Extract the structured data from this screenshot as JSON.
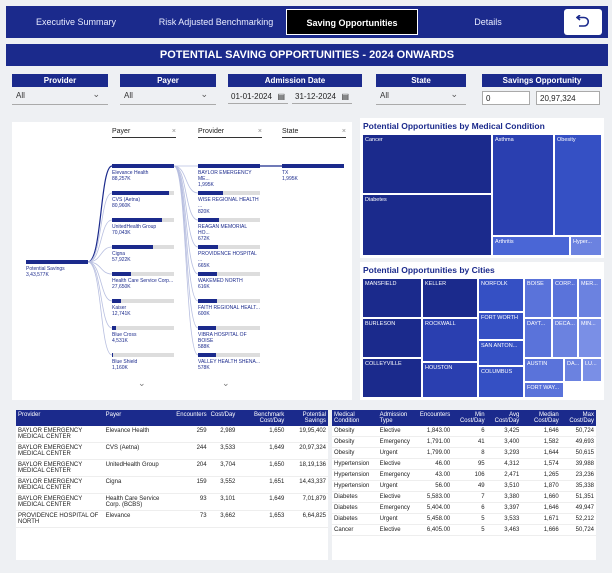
{
  "nav": {
    "tabs": [
      "Executive Summary",
      "Risk Adjusted Benchmarking",
      "Saving Opportunities",
      "Details"
    ],
    "back_icon": "back-arrow-icon"
  },
  "banner": "POTENTIAL SAVING OPPORTUNITIES - 2024 ONWARDS",
  "filters": {
    "provider": {
      "label": "Provider",
      "value": "All"
    },
    "payer": {
      "label": "Payer",
      "value": "All"
    },
    "admission_date": {
      "label": "Admission Date",
      "from": "01-01-2024",
      "to": "31-12-2024"
    },
    "state": {
      "label": "State",
      "value": "All"
    },
    "savings": {
      "label": "Savings Opportunity",
      "min": "0",
      "max": "20,97,324"
    }
  },
  "decomp": {
    "headers": [
      "Payer",
      "Provider",
      "State"
    ],
    "root": {
      "label": "Potential Savings",
      "value": "3,43,577K"
    },
    "payers": [
      {
        "label": "Elevance Health",
        "value": "88,257K",
        "pct": 1.0
      },
      {
        "label": "CVS (Aetna)",
        "value": "80,960K",
        "pct": 0.92
      },
      {
        "label": "UnitedHealth Group",
        "value": "70,043K",
        "pct": 0.8
      },
      {
        "label": "Cigna",
        "value": "57,922K",
        "pct": 0.66
      },
      {
        "label": "Health Care Service Corp...",
        "value": "27,650K",
        "pct": 0.31
      },
      {
        "label": "Kaiser",
        "value": "12,741K",
        "pct": 0.15
      },
      {
        "label": "Blue Cross",
        "value": "4,531K",
        "pct": 0.06
      },
      {
        "label": "Blue Shield",
        "value": "1,160K",
        "pct": 0.02
      }
    ],
    "providers": [
      {
        "label": "BAYLOR EMERGENCY ME...",
        "value": "1,995K",
        "pct": 1.0
      },
      {
        "label": "WISE REGIONAL HEALTH ...",
        "value": "820K",
        "pct": 0.41
      },
      {
        "label": "REAGAN MEMORIAL HO...",
        "value": "672K",
        "pct": 0.34
      },
      {
        "label": "PROVIDENCE HOSPITAL ...",
        "value": "665K",
        "pct": 0.33
      },
      {
        "label": "WAKEMED NORTH",
        "value": "616K",
        "pct": 0.31
      },
      {
        "label": "FAITH REGIONAL HEALT...",
        "value": "600K",
        "pct": 0.3
      },
      {
        "label": "VIBRA HOSPITAL OF BOISE",
        "value": "588K",
        "pct": 0.29
      },
      {
        "label": "VALLEY HEALTH SHENA...",
        "value": "578K",
        "pct": 0.29
      }
    ],
    "state": {
      "label": "TX",
      "value": "1,995K",
      "pct": 1.0
    }
  },
  "treemap_conditions": {
    "title": "Potential Opportunities by Medical Condition",
    "cells": [
      "Cancer",
      "Asthma",
      "Obesity",
      "Diabetes",
      "Arthritis",
      "Hyper..."
    ]
  },
  "treemap_cities": {
    "title": "Potential Opportunities by Cities",
    "cells": [
      "MANSFIELD",
      "KELLER",
      "NORFOLK",
      "BOISE",
      "CORP...",
      "MER...",
      "FORT WORTH",
      "BURLESON",
      "ROCKWALL",
      "DAYT...",
      "DECA...",
      "MIN...",
      "SAN ANTON...",
      "COLLEYVILLE",
      "HOUSTON",
      "AUSTIN",
      "DA...",
      "LU...",
      "COLUMBUS",
      "FORT WAY..."
    ]
  },
  "table1": {
    "headers": [
      "Provider",
      "Payer",
      "Encounters",
      "Cost/Day",
      "Benchmark Cost/Day",
      "Potential Savings"
    ],
    "rows": [
      [
        "BAYLOR EMERGENCY MEDICAL CENTER",
        "Elevance Health",
        "259",
        "2,989",
        "1,650",
        "19,95,402"
      ],
      [
        "BAYLOR EMERGENCY MEDICAL CENTER",
        "CVS (Aetna)",
        "244",
        "3,533",
        "1,649",
        "20,97,324"
      ],
      [
        "BAYLOR EMERGENCY MEDICAL CENTER",
        "UnitedHealth Group",
        "204",
        "3,704",
        "1,650",
        "18,19,136"
      ],
      [
        "BAYLOR EMERGENCY MEDICAL CENTER",
        "Cigna",
        "159",
        "3,552",
        "1,651",
        "14,43,337"
      ],
      [
        "BAYLOR EMERGENCY MEDICAL CENTER",
        "Health Care Service Corp. (BCBS)",
        "93",
        "3,101",
        "1,649",
        "7,01,879"
      ],
      [
        "PROVIDENCE HOSPITAL OF NORTH",
        "Elevance",
        "73",
        "3,662",
        "1,653",
        "6,64,825"
      ]
    ]
  },
  "table2": {
    "headers": [
      "Medical Condition",
      "Admission Type",
      "Encounters",
      "Min Cost/Day",
      "Avg Cost/Day",
      "Median Cost/Day",
      "Max Cost/Day"
    ],
    "rows": [
      [
        "Obesity",
        "Elective",
        "1,843.00",
        "6",
        "3,425",
        "1,646",
        "50,724"
      ],
      [
        "Obesity",
        "Emergency",
        "1,791.00",
        "41",
        "3,400",
        "1,582",
        "49,693"
      ],
      [
        "Obesity",
        "Urgent",
        "1,799.00",
        "8",
        "3,293",
        "1,644",
        "50,615"
      ],
      [
        "Hypertension",
        "Elective",
        "46.00",
        "95",
        "4,312",
        "1,574",
        "39,988"
      ],
      [
        "Hypertension",
        "Emergency",
        "43.00",
        "106",
        "2,471",
        "1,265",
        "23,236"
      ],
      [
        "Hypertension",
        "Urgent",
        "56.00",
        "49",
        "3,510",
        "1,870",
        "35,338"
      ],
      [
        "Diabetes",
        "Elective",
        "5,583.00",
        "7",
        "3,380",
        "1,660",
        "51,351"
      ],
      [
        "Diabetes",
        "Emergency",
        "5,404.00",
        "6",
        "3,397",
        "1,646",
        "49,947"
      ],
      [
        "Diabetes",
        "Urgent",
        "5,458.00",
        "5",
        "3,533",
        "1,671",
        "52,212"
      ],
      [
        "Cancer",
        "Elective",
        "6,405.00",
        "5",
        "3,463",
        "1,666",
        "50,724"
      ]
    ]
  }
}
